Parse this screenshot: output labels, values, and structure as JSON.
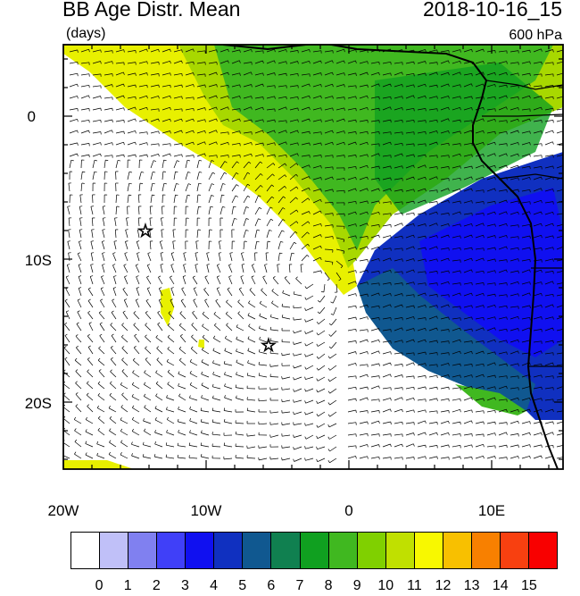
{
  "header": {
    "title": "BB Age Distr. Mean",
    "units": "(days)",
    "datetime": "2018-10-16_15",
    "level": "600 hPa"
  },
  "map": {
    "lon_range": [
      -20,
      15
    ],
    "lat_range": [
      -24.5,
      5
    ],
    "x_ticks": [
      {
        "lon": -20,
        "label": "20W"
      },
      {
        "lon": -10,
        "label": "10W"
      },
      {
        "lon": 0,
        "label": "0"
      },
      {
        "lon": 10,
        "label": "10E"
      }
    ],
    "y_ticks": [
      {
        "lat": 0,
        "label": "0"
      },
      {
        "lat": -10,
        "label": "10S"
      },
      {
        "lat": -20,
        "label": "20S"
      }
    ],
    "markers": [
      {
        "name": "star",
        "lon": -14.5,
        "lat": -8
      },
      {
        "name": "star",
        "lon": -5.7,
        "lat": -16
      }
    ],
    "field": "biomass-burning aerosol mean age, wind barbs overlay"
  },
  "colorbar": {
    "labels": [
      "0",
      "1",
      "2",
      "3",
      "4",
      "5",
      "6",
      "7",
      "8",
      "9",
      "10",
      "11",
      "12",
      "13",
      "14",
      "15"
    ],
    "colors": [
      "#ffffff",
      "#c0c0f8",
      "#8080f0",
      "#4040f8",
      "#1010f0",
      "#1030c0",
      "#105890",
      "#108050",
      "#10a020",
      "#40b820",
      "#80d000",
      "#c0e000",
      "#f8f800",
      "#f8c000",
      "#f88000",
      "#f84010",
      "#f80000"
    ]
  }
}
